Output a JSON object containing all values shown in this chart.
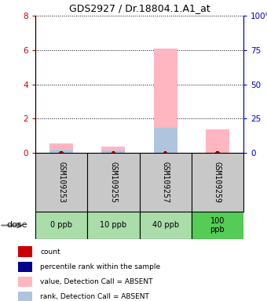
{
  "title": "GDS2927 / Dr.18804.1.A1_at",
  "samples": [
    "GSM109253",
    "GSM109255",
    "GSM109257",
    "GSM109259"
  ],
  "doses": [
    "0 ppb",
    "10 ppb",
    "40 ppb",
    "100\nppb"
  ],
  "dose_colors": [
    "#aaddaa",
    "#aaddaa",
    "#aaddaa",
    "#55cc55"
  ],
  "ylim_left": [
    0,
    8
  ],
  "ylim_right": [
    0,
    100
  ],
  "yticks_left": [
    0,
    2,
    4,
    6,
    8
  ],
  "yticks_right": [
    0,
    25,
    50,
    75,
    100
  ],
  "absent_value_bars": [
    0.55,
    0.35,
    6.1,
    1.35
  ],
  "absent_rank_bars": [
    0.18,
    0.12,
    1.45,
    0.0
  ],
  "color_absent_value": "#ffb6c1",
  "color_absent_rank": "#b0c4de",
  "color_count": "#cc0000",
  "color_rank": "#00008b",
  "left_axis_color": "#cc0000",
  "right_axis_color": "#0000cc",
  "background_color": "#ffffff",
  "label_area_color": "#c8c8c8",
  "figsize": [
    3.4,
    3.84
  ],
  "dpi": 100
}
